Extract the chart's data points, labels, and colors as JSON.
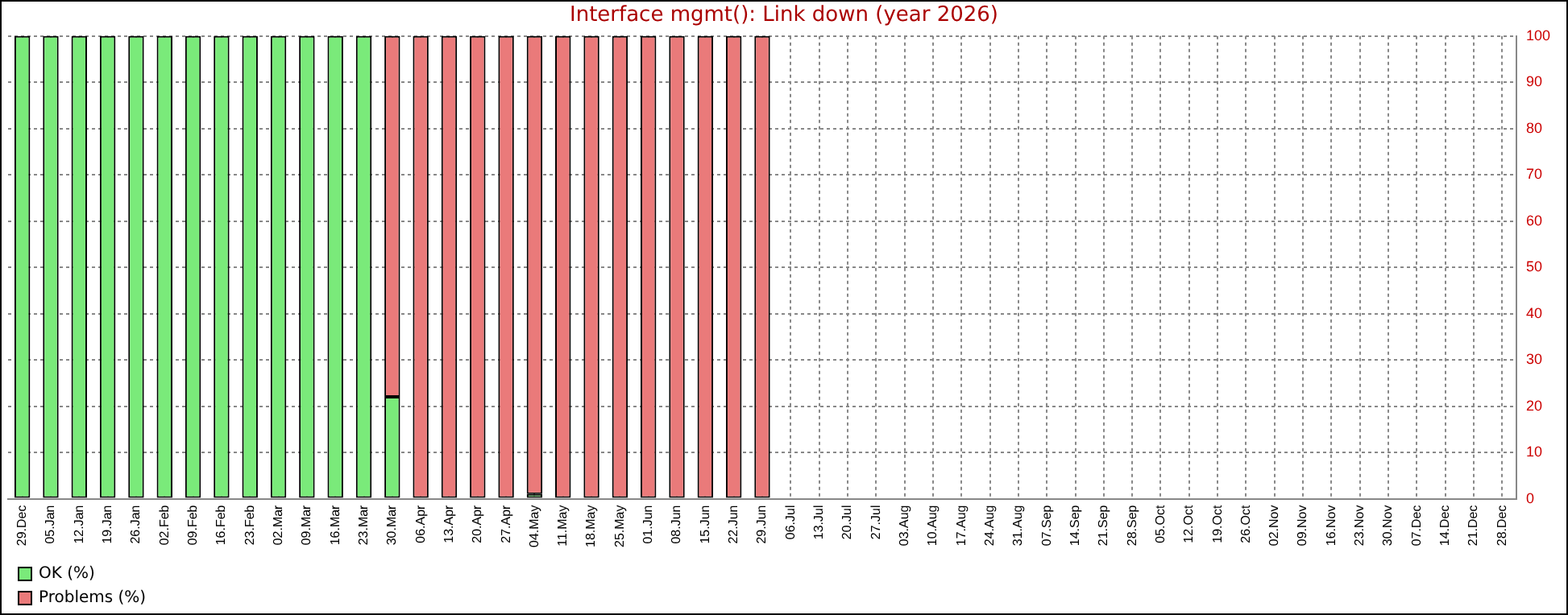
{
  "chart_data": {
    "type": "bar",
    "title": "Interface mgmt(): Link down (year 2026)",
    "stacked": true,
    "grid": true,
    "legend": "bottom left",
    "categories": [
      "29.Dec",
      "05.Jan",
      "12.Jan",
      "19.Jan",
      "26.Jan",
      "02.Feb",
      "09.Feb",
      "16.Feb",
      "23.Feb",
      "02.Mar",
      "09.Mar",
      "16.Mar",
      "23.Mar",
      "30.Mar",
      "06.Apr",
      "13.Apr",
      "20.Apr",
      "27.Apr",
      "04.May",
      "11.May",
      "18.May",
      "25.May",
      "01.Jun",
      "08.Jun",
      "15.Jun",
      "22.Jun",
      "29.Jun",
      "06.Jul",
      "13.Jul",
      "20.Jul",
      "27.Jul",
      "03.Aug",
      "10.Aug",
      "17.Aug",
      "24.Aug",
      "31.Aug",
      "07.Sep",
      "14.Sep",
      "21.Sep",
      "28.Sep",
      "05.Oct",
      "12.Oct",
      "19.Oct",
      "26.Oct",
      "02.Nov",
      "09.Nov",
      "16.Nov",
      "23.Nov",
      "30.Nov",
      "07.Dec",
      "14.Dec",
      "21.Dec",
      "28.Dec"
    ],
    "series": [
      {
        "name": "OK (%)",
        "color": "#7aea7a",
        "values": [
          100,
          100,
          100,
          100,
          100,
          100,
          100,
          100,
          100,
          100,
          100,
          100,
          100,
          22,
          0,
          0,
          0,
          0,
          1,
          0,
          0,
          0,
          0,
          0,
          0,
          0,
          0,
          null,
          null,
          null,
          null,
          null,
          null,
          null,
          null,
          null,
          null,
          null,
          null,
          null,
          null,
          null,
          null,
          null,
          null,
          null,
          null,
          null,
          null,
          null,
          null,
          null,
          null
        ]
      },
      {
        "name": "Problems (%)",
        "color": "#ea7a7a",
        "values": [
          0,
          0,
          0,
          0,
          0,
          0,
          0,
          0,
          0,
          0,
          0,
          0,
          0,
          78,
          100,
          100,
          100,
          100,
          99,
          100,
          100,
          100,
          100,
          100,
          100,
          100,
          100,
          null,
          null,
          null,
          null,
          null,
          null,
          null,
          null,
          null,
          null,
          null,
          null,
          null,
          null,
          null,
          null,
          null,
          null,
          null,
          null,
          null,
          null,
          null,
          null,
          null,
          null
        ]
      }
    ],
    "ylim": [
      0,
      100
    ],
    "yticks": [
      0,
      10,
      20,
      30,
      40,
      50,
      60,
      70,
      80,
      90,
      100
    ]
  }
}
